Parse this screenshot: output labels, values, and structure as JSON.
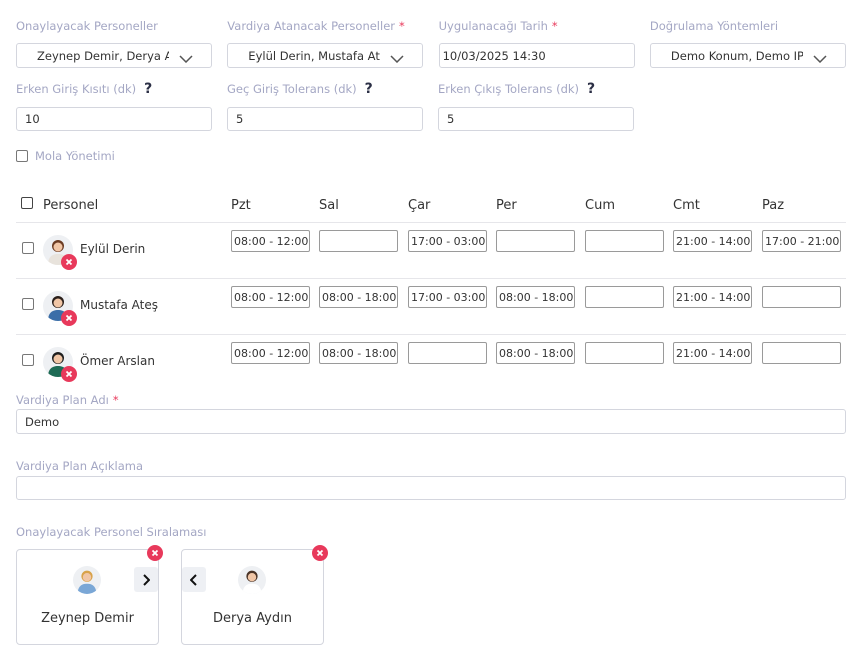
{
  "top_fields": [
    {
      "label": "Onaylayacak Personeller",
      "value": "Zeynep Demir, Derya Ay",
      "kind": "select"
    },
    {
      "label": "Vardiya Atanacak Personeller",
      "marker": "*",
      "value": "Eylül Derin, Mustafa Ateş",
      "kind": "select"
    },
    {
      "label": "Uygulanacağı Tarih",
      "marker": "*",
      "value": "10/03/2025 14:30",
      "kind": "input"
    },
    {
      "label": "Doğrulama Yöntemleri",
      "value": "Demo Konum, Demo IP",
      "kind": "select"
    }
  ],
  "tolerance_fields": [
    {
      "label": "Erken Giriş Kısıtı (dk)",
      "help": "?",
      "value": 10
    },
    {
      "label": "Geç Giriş Tolerans (dk)",
      "help": "?",
      "value": 5
    },
    {
      "label": "Erken Çıkış Tolerans (dk)",
      "help": "?",
      "value": 5
    }
  ],
  "break_checkbox": "Mola Yönetimi",
  "schedule": {
    "header": [
      "Personel",
      "Pzt",
      "Sal",
      "Çar",
      "Per",
      "Cum",
      "Cmt",
      "Paz"
    ],
    "rows": [
      {
        "name": "Eylül Derin",
        "shifts": [
          "08:00 - 12:00",
          null,
          "17:00 - 03:00",
          null,
          null,
          "21:00 - 14:00",
          "17:00 - 21:00"
        ]
      },
      {
        "name": "Mustafa Ateş",
        "shifts": [
          "08:00 - 12:00",
          "08:00 - 18:00",
          "17:00 - 03:00",
          "08:00 - 18:00",
          null,
          "21:00 - 14:00",
          null
        ]
      },
      {
        "name": "Ömer Arslan",
        "shifts": [
          "08:00 - 12:00",
          "08:00 - 18:00",
          null,
          "08:00 - 18:00",
          null,
          "21:00 - 14:00",
          null
        ]
      }
    ]
  },
  "plan_name": {
    "label": "Vardiya Plan Adı",
    "marker": "*",
    "value": "Demo"
  },
  "plan_description": {
    "label": "Vardiya Plan Açıklama",
    "value": null
  },
  "approval_order": {
    "label": "Onaylayacak Personel Sıralaması",
    "cards": [
      {
        "name": "Zeynep Demir"
      },
      {
        "name": "Derya Aydın"
      }
    ]
  }
}
